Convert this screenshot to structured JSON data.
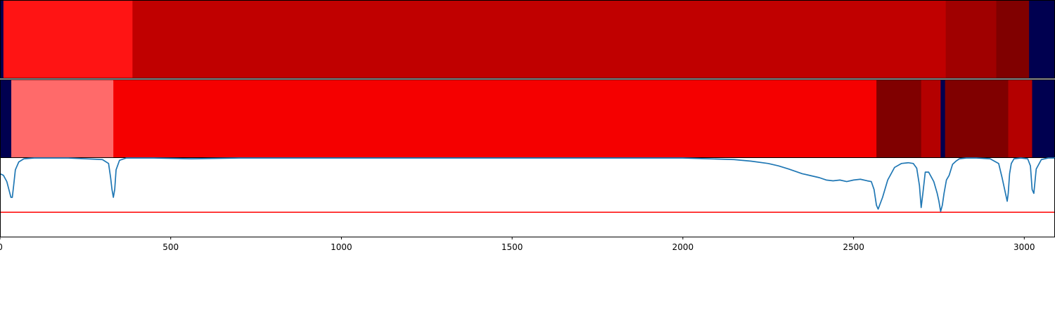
{
  "chart_data": {
    "type": "heatmap",
    "xlim": [
      0,
      3090
    ],
    "x_ticks": [
      0,
      500,
      1000,
      1500,
      2000,
      2500,
      3000
    ],
    "x_tick_labels": [
      "0",
      "500",
      "1000",
      "1500",
      "2000",
      "2500",
      "3000"
    ],
    "colors": {
      "background": "#000050",
      "line": "#1f77b4",
      "threshold_line": "#ff0000",
      "axis": "#000000"
    },
    "tracks": [
      {
        "segments": [
          {
            "start": 0,
            "end": 10,
            "color": "#000050"
          },
          {
            "start": 10,
            "end": 388,
            "color": "#ff1414"
          },
          {
            "start": 388,
            "end": 2770,
            "color": "#c00000"
          },
          {
            "start": 2770,
            "end": 2918,
            "color": "#a00000"
          },
          {
            "start": 2918,
            "end": 3014,
            "color": "#800000"
          },
          {
            "start": 3014,
            "end": 3090,
            "color": "#000050"
          }
        ]
      },
      {
        "segments": [
          {
            "start": 0,
            "end": 33,
            "color": "#000050"
          },
          {
            "start": 33,
            "end": 332,
            "color": "#ff6a6a"
          },
          {
            "start": 332,
            "end": 2567,
            "color": "#f50000"
          },
          {
            "start": 2567,
            "end": 2698,
            "color": "#800000"
          },
          {
            "start": 2698,
            "end": 2755,
            "color": "#b40000"
          },
          {
            "start": 2755,
            "end": 2768,
            "color": "#000050"
          },
          {
            "start": 2768,
            "end": 2953,
            "color": "#800000"
          },
          {
            "start": 2953,
            "end": 3023,
            "color": "#b40000"
          },
          {
            "start": 3023,
            "end": 3090,
            "color": "#000050"
          }
        ]
      }
    ],
    "line_panel": {
      "ylim": [
        0,
        1
      ],
      "threshold": 0.31,
      "series": [
        {
          "x": [
            0,
            10,
            20,
            26,
            32,
            36,
            40,
            45,
            55,
            70,
            100,
            200,
            300,
            318,
            324,
            328,
            332,
            336,
            340,
            350,
            370,
            450,
            560,
            700,
            1000,
            1500,
            2000,
            2150,
            2200,
            2250,
            2280,
            2310,
            2330,
            2350,
            2370,
            2390,
            2400,
            2420,
            2440,
            2460,
            2480,
            2500,
            2520,
            2540,
            2552,
            2560,
            2567,
            2572,
            2585,
            2600,
            2620,
            2640,
            2660,
            2675,
            2685,
            2693,
            2698,
            2703,
            2710,
            2720,
            2735,
            2745,
            2750,
            2755,
            2760,
            2765,
            2772,
            2780,
            2790,
            2800,
            2810,
            2830,
            2860,
            2900,
            2925,
            2935,
            2945,
            2950,
            2953,
            2957,
            2962,
            2970,
            2990,
            3010,
            3018,
            3023,
            3028,
            3035,
            3050,
            3070,
            3090
          ],
          "y": [
            0.8,
            0.78,
            0.7,
            0.6,
            0.5,
            0.5,
            0.65,
            0.85,
            0.95,
            0.99,
            1.0,
            1.0,
            0.98,
            0.93,
            0.75,
            0.6,
            0.5,
            0.6,
            0.85,
            0.97,
            1.0,
            1.0,
            0.99,
            1.0,
            1.0,
            1.0,
            1.0,
            0.98,
            0.96,
            0.93,
            0.9,
            0.86,
            0.83,
            0.8,
            0.78,
            0.76,
            0.75,
            0.72,
            0.71,
            0.72,
            0.7,
            0.72,
            0.73,
            0.71,
            0.7,
            0.6,
            0.4,
            0.35,
            0.5,
            0.72,
            0.88,
            0.93,
            0.94,
            0.93,
            0.87,
            0.65,
            0.37,
            0.55,
            0.82,
            0.82,
            0.7,
            0.55,
            0.45,
            0.32,
            0.4,
            0.55,
            0.72,
            0.78,
            0.92,
            0.96,
            0.99,
            1.0,
            1.0,
            0.99,
            0.93,
            0.75,
            0.55,
            0.45,
            0.55,
            0.8,
            0.93,
            0.99,
            1.0,
            0.99,
            0.9,
            0.6,
            0.55,
            0.86,
            0.98,
            1.0,
            1.0
          ]
        }
      ]
    }
  }
}
